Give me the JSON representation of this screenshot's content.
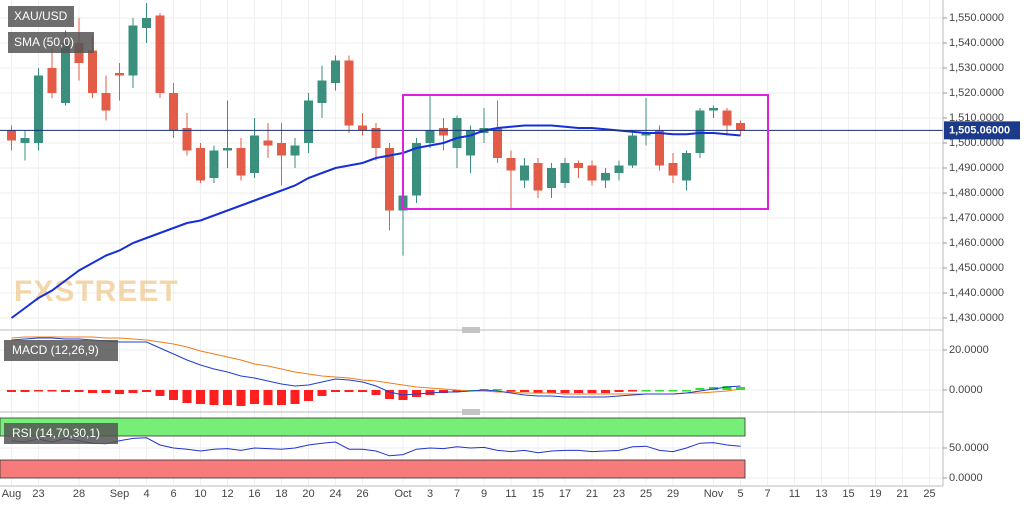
{
  "chart_data": [
    {
      "type": "candlestick",
      "title": "XAU/USD",
      "watermark": "FXSTREET",
      "categories": [
        "Aug",
        null,
        "23",
        null,
        null,
        "28",
        null,
        null,
        "Sep",
        null,
        "4",
        null,
        "6",
        null,
        "10",
        null,
        "12",
        null,
        "16",
        null,
        "18",
        null,
        "20",
        null,
        "24",
        null,
        "26",
        null,
        null,
        "Oct",
        null,
        "3",
        null,
        "7",
        null,
        "9",
        null,
        "11",
        null,
        "15",
        null,
        "17",
        null,
        "21",
        null,
        "23",
        null,
        "25",
        null,
        "29",
        null,
        null,
        "Nov",
        null,
        "5",
        null,
        "7",
        null,
        "11",
        null,
        "13",
        null,
        "15",
        null,
        "19",
        null,
        "21",
        null,
        "25"
      ],
      "open": [
        1505,
        1500,
        1500,
        1530,
        1516,
        1540,
        1537,
        1520,
        1528,
        1527,
        1546,
        1551,
        1520,
        1506,
        1498,
        1486,
        1497,
        1498,
        1488,
        1501,
        1500,
        1495,
        1500,
        1516,
        1524,
        1533,
        1507,
        1506,
        1498,
        1473,
        1479,
        1500,
        1506,
        1498,
        1495,
        1504,
        1506,
        1494,
        1485,
        1492,
        1482,
        1484,
        1492,
        1491,
        1485,
        1488,
        1491,
        1503,
        1505,
        1492,
        1485,
        1496,
        1513,
        1513,
        1508,
        null,
        null,
        null,
        null,
        null,
        null,
        null,
        null,
        null,
        null,
        null,
        null,
        null,
        null
      ],
      "high": [
        1507,
        1505,
        1530,
        1538,
        1545,
        1550,
        1543,
        1527,
        1532,
        1550,
        1556,
        1552,
        1524,
        1512,
        1500,
        1499,
        1517,
        1502,
        1510,
        1508,
        1508,
        1502,
        1520,
        1531,
        1535,
        1535,
        1512,
        1508,
        1500,
        1480,
        1502,
        1519,
        1510,
        1511,
        1507,
        1514,
        1517,
        1497,
        1494,
        1494,
        1492,
        1494,
        1493,
        1493,
        1490,
        1493,
        1505,
        1518,
        1507,
        1496,
        1497,
        1514,
        1515,
        1514,
        1509,
        null,
        null,
        null,
        null,
        null,
        null,
        null,
        null,
        null,
        null,
        null,
        null,
        null,
        null
      ],
      "low": [
        1497,
        1493,
        1497,
        1518,
        1515,
        1525,
        1518,
        1509,
        1517,
        1522,
        1540,
        1518,
        1502,
        1495,
        1484,
        1484,
        1490,
        1485,
        1486,
        1494,
        1483,
        1490,
        1496,
        1510,
        1521,
        1504,
        1503,
        1493,
        1465,
        1455,
        1476,
        1498,
        1497,
        1490,
        1488,
        1500,
        1492,
        1474,
        1482,
        1478,
        1478,
        1482,
        1486,
        1483,
        1482,
        1485,
        1490,
        1499,
        1489,
        1484,
        1481,
        1494,
        1510,
        1503,
        1503,
        null,
        null,
        null,
        null,
        null,
        null,
        null,
        null,
        null,
        null,
        null,
        null,
        null,
        null
      ],
      "close": [
        1501,
        1502,
        1527,
        1520,
        1540,
        1532,
        1520,
        1513,
        1527,
        1547,
        1550,
        1520,
        1505,
        1497,
        1485,
        1497,
        1498,
        1487,
        1503,
        1499,
        1495,
        1499,
        1517,
        1525,
        1533,
        1507,
        1505,
        1498,
        1473,
        1479,
        1500,
        1505,
        1503,
        1510,
        1505,
        1506,
        1494,
        1489,
        1491,
        1481,
        1490,
        1492,
        1490,
        1485,
        1488,
        1491,
        1503,
        1504,
        1491,
        1487,
        1496,
        1513,
        1514,
        1507,
        1505,
        null,
        null,
        null,
        null,
        null,
        null,
        null,
        null,
        null,
        null,
        null,
        null,
        null,
        null
      ],
      "up_color": "#3a8f7d",
      "down_color": "#e25c47",
      "overlays": [
        {
          "name": "SMA (50,0)",
          "color": "#1530d8",
          "values": [
            1430,
            1434,
            1438,
            1441,
            1445,
            1449,
            1452,
            1455,
            1457,
            1460,
            1462,
            1464,
            1466,
            1468,
            1469,
            1471,
            1473,
            1475,
            1477,
            1479,
            1481,
            1483,
            1486,
            1488,
            1490,
            1491,
            1492,
            1494,
            1495,
            1496,
            1498,
            1499,
            1500,
            1502,
            1503,
            1505,
            1506,
            1506.5,
            1507,
            1507,
            1507,
            1506.5,
            1506,
            1506,
            1505.5,
            1505,
            1504.5,
            1504,
            1504,
            1503.5,
            1503.5,
            1504,
            1504,
            1503.5,
            1503,
            null,
            null,
            null,
            null,
            null,
            null,
            null,
            null,
            null,
            null,
            null,
            null,
            null,
            null
          ]
        }
      ],
      "last_price": {
        "value": 1505.06,
        "label": "1,505.06000"
      },
      "ylim": [
        1427.2,
        1557.2
      ],
      "yticks": [
        {
          "value": 1430,
          "label": "1,430.0000"
        },
        {
          "value": 1440,
          "label": "1,440.0000"
        },
        {
          "value": 1450,
          "label": "1,450.0000"
        },
        {
          "value": 1460,
          "label": "1,460.0000"
        },
        {
          "value": 1470,
          "label": "1,470.0000"
        },
        {
          "value": 1480,
          "label": "1,480.0000"
        },
        {
          "value": 1490,
          "label": "1,490.0000"
        },
        {
          "value": 1500,
          "label": "1,500.0000"
        },
        {
          "value": 1510,
          "label": "1,510.0000"
        },
        {
          "value": 1520,
          "label": "1,520.0000"
        },
        {
          "value": 1530,
          "label": "1,530.0000"
        },
        {
          "value": 1540,
          "label": "1,540.0000"
        },
        {
          "value": 1550,
          "label": "1,550.0000"
        }
      ],
      "grid": true
    },
    {
      "type": "macd",
      "title": "MACD (12,26,9)",
      "macd": [
        25,
        25.5,
        26,
        26,
        25.5,
        25.5,
        25,
        24.5,
        24,
        24,
        24,
        21,
        18,
        15,
        12.5,
        10.5,
        9,
        7,
        6,
        4.5,
        3,
        2,
        2.5,
        4,
        5.5,
        5,
        4,
        2,
        -1,
        -2.5,
        -2,
        -1.5,
        -1,
        -1,
        -0.5,
        0,
        -0.5,
        -1.5,
        -2.5,
        -3,
        -3,
        -3.5,
        -3.5,
        -3.5,
        -3.5,
        -3,
        -2.5,
        -2,
        -2,
        -2,
        -1.5,
        -0.5,
        0.5,
        1.5,
        2
      ],
      "signal": [
        26,
        26.5,
        26.5,
        26.5,
        26.5,
        26.5,
        26.5,
        26,
        26,
        25.5,
        25,
        24,
        23,
        21.5,
        19.5,
        18,
        16.5,
        15,
        13,
        12,
        10.5,
        9,
        8,
        7,
        6.5,
        6,
        5,
        4.5,
        3.5,
        2.5,
        1.5,
        1,
        0.5,
        0,
        -0.5,
        -0.5,
        -1,
        -1,
        -1.5,
        -1.5,
        -1.5,
        -2,
        -2,
        -2,
        -2,
        -2,
        -2,
        -2,
        -2,
        -2,
        -1.5,
        -1.5,
        -1,
        -0.5,
        0.5
      ],
      "histogram": [
        -1,
        -1,
        -0.5,
        -0.5,
        -1,
        -1,
        -1.5,
        -1.5,
        -2,
        -1.5,
        -1,
        -3,
        -5,
        -6.5,
        -7,
        -7.5,
        -7.5,
        -8,
        -7,
        -7.5,
        -7.5,
        -7,
        -5.5,
        -3,
        -1,
        -1,
        -1,
        -2.5,
        -4.5,
        -5,
        -3.5,
        -2.5,
        -1.5,
        -1,
        0,
        0.5,
        0.5,
        -0.5,
        -1,
        -1.5,
        -1.5,
        -1.5,
        -1.5,
        -1.5,
        -1.5,
        -1,
        -0.5,
        0,
        0,
        0,
        0,
        1,
        1.5,
        2,
        1.5
      ],
      "colors": {
        "macd": "#1f3fd1",
        "signal": "#f07e1b",
        "up": "#33dd33",
        "down": "#ff1f1f"
      },
      "ylim": [
        -9,
        27.5
      ],
      "yticks": [
        {
          "value": 20,
          "label": "20.0000"
        },
        {
          "value": 0,
          "label": "0.0000"
        }
      ]
    },
    {
      "type": "rsi",
      "title": "RSI (14,70,30,1)",
      "values": [
        62,
        60,
        65,
        60,
        66,
        62,
        58,
        57,
        62,
        66,
        67,
        55,
        50,
        48,
        45,
        48,
        49,
        46,
        50,
        49,
        48,
        50,
        55,
        58,
        60,
        48,
        48,
        45,
        37,
        39,
        48,
        50,
        49,
        52,
        50,
        51,
        46,
        44,
        46,
        42,
        45,
        46,
        46,
        44,
        45,
        46,
        52,
        53,
        46,
        44,
        50,
        58,
        59,
        55,
        53
      ],
      "color": "#2233cc",
      "overbought": 70,
      "oversold": 30,
      "overbought_color": "#77ee77",
      "oversold_color": "#f77b7b",
      "ylim": [
        -11.67,
        101.67
      ],
      "yticks": [
        {
          "value": 50,
          "label": "50.0000"
        },
        {
          "value": 0,
          "label": "0.0000"
        }
      ]
    }
  ]
}
